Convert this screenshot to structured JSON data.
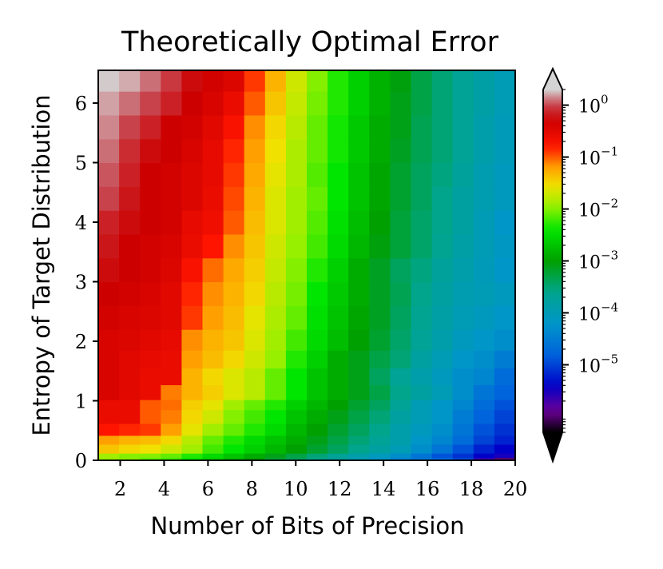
{
  "chart_data": {
    "type": "heatmap",
    "title": "Theoretically Optimal Error",
    "xlabel": "Number of Bits of Precision",
    "ylabel": "Entropy of Target Distribution",
    "xlim": [
      1,
      20
    ],
    "ylim": [
      0,
      6.55
    ],
    "x_ticks": [
      2,
      4,
      6,
      8,
      10,
      12,
      14,
      16,
      18,
      20
    ],
    "x_tick_labels": [
      "2",
      "4",
      "6",
      "8",
      "10",
      "12",
      "14",
      "16",
      "18",
      "20"
    ],
    "y_ticks": [
      0,
      1,
      2,
      3,
      4,
      5,
      6
    ],
    "y_tick_labels": [
      "0",
      "1",
      "2",
      "3",
      "4",
      "5",
      "6"
    ],
    "columns_bits": [
      1,
      2,
      3,
      4,
      5,
      6,
      7,
      8,
      9,
      10,
      11,
      12,
      13,
      14,
      15,
      16,
      17,
      18,
      19,
      20
    ],
    "colorbar": {
      "scale": "log",
      "colormap": "nipy_spectral",
      "extend": "both",
      "range": [
        5e-07,
        2
      ],
      "tick_exponents": [
        0,
        -1,
        -2,
        -3,
        -4,
        -5
      ],
      "tick_base": "10",
      "colors": [
        "#000000",
        "#7700a0",
        "#0000dd",
        "#0099dd",
        "#00aa88",
        "#00aa00",
        "#00ff00",
        "#ccf000",
        "#ffcc00",
        "#ff0000",
        "#cc0000",
        "#cccccc"
      ]
    },
    "log10_error_grid": {
      "description": "rows bottom-to-top by entropy band, columns = bits 1..20",
      "row_entropy_bounds": [
        0,
        0.05,
        0.12,
        0.27,
        0.42,
        0.62,
        0.85,
        1.02,
        1.27,
        1.55,
        1.85,
        2.2,
        2.6,
        3.0,
        3.4,
        3.8,
        4.2,
        4.6,
        5.0,
        5.4,
        5.8,
        6.2,
        6.55
      ],
      "rows": [
        [
          -1.95,
          -2.0,
          -2.1,
          -2.2,
          -2.4,
          -2.6,
          -2.8,
          -3.0,
          -3.2,
          -3.4,
          -3.6,
          -3.8,
          -4.0,
          -4.2,
          -4.4,
          -4.6,
          -4.8,
          -5.0,
          -5.6,
          -6.0
        ],
        [
          -1.9,
          -2.0,
          -2.0,
          -2.1,
          -2.3,
          -2.5,
          -2.7,
          -2.9,
          -3.1,
          -3.3,
          -3.5,
          -3.7,
          -3.9,
          -4.1,
          -4.3,
          -4.6,
          -4.9,
          -5.1,
          -5.4,
          -5.5
        ],
        [
          -1.4,
          -1.5,
          -1.55,
          -1.7,
          -1.9,
          -2.2,
          -2.4,
          -2.6,
          -2.8,
          -3.0,
          -3.2,
          -3.4,
          -3.6,
          -3.8,
          -4.0,
          -4.3,
          -4.6,
          -4.9,
          -5.2,
          -5.4
        ],
        [
          -1.2,
          -1.3,
          -1.35,
          -1.5,
          -1.8,
          -2.1,
          -2.3,
          -2.5,
          -2.7,
          -2.9,
          -3.1,
          -3.3,
          -3.5,
          -3.7,
          -3.9,
          -4.2,
          -4.4,
          -4.7,
          -5.0,
          -5.2
        ],
        [
          -0.8,
          -0.85,
          -0.9,
          -1.2,
          -1.6,
          -1.9,
          -2.1,
          -2.3,
          -2.5,
          -2.8,
          -3.0,
          -3.2,
          -3.4,
          -3.6,
          -3.9,
          -4.1,
          -4.3,
          -4.6,
          -4.9,
          -5.1
        ],
        [
          -0.6,
          -0.6,
          -1.0,
          -1.1,
          -1.5,
          -1.7,
          -2.0,
          -2.2,
          -2.4,
          -2.7,
          -2.9,
          -3.1,
          -3.3,
          -3.5,
          -3.8,
          -4.0,
          -4.2,
          -4.5,
          -4.8,
          -5.0
        ],
        [
          -0.6,
          -0.6,
          -1.0,
          -1.05,
          -1.45,
          -1.6,
          -1.9,
          -2.1,
          -2.3,
          -2.6,
          -2.8,
          -3.0,
          -3.2,
          -3.4,
          -3.7,
          -4.0,
          -4.2,
          -4.4,
          -4.7,
          -4.9
        ],
        [
          -0.4,
          -0.5,
          -0.6,
          -1.1,
          -1.3,
          -1.45,
          -1.65,
          -1.8,
          -2.1,
          -2.4,
          -2.7,
          -2.9,
          -3.1,
          -3.3,
          -3.6,
          -3.8,
          -4.0,
          -4.3,
          -4.6,
          -4.8
        ],
        [
          -0.4,
          -0.5,
          -0.6,
          -0.6,
          -1.3,
          -1.5,
          -1.65,
          -1.8,
          -2.1,
          -2.4,
          -2.7,
          -2.9,
          -3.1,
          -3.4,
          -3.7,
          -3.9,
          -4.1,
          -4.3,
          -4.4,
          -4.7
        ],
        [
          -0.4,
          -0.5,
          -0.55,
          -0.6,
          -1.2,
          -1.35,
          -1.5,
          -1.7,
          -1.95,
          -2.3,
          -2.6,
          -2.9,
          -3.1,
          -3.3,
          -3.5,
          -3.8,
          -4.0,
          -4.2,
          -4.3,
          -4.5
        ],
        [
          -0.4,
          -0.45,
          -0.5,
          -0.55,
          -1.15,
          -1.3,
          -1.4,
          -1.65,
          -1.9,
          -2.2,
          -2.5,
          -2.75,
          -3.0,
          -3.2,
          -3.45,
          -3.7,
          -3.9,
          -4.1,
          -4.2,
          -4.3
        ],
        [
          -0.35,
          -0.4,
          -0.45,
          -0.5,
          -0.9,
          -1.2,
          -1.35,
          -1.6,
          -1.85,
          -2.1,
          -2.45,
          -2.7,
          -2.95,
          -3.15,
          -3.4,
          -3.65,
          -3.85,
          -4.0,
          -4.1,
          -4.2
        ],
        [
          -0.3,
          -0.35,
          -0.4,
          -0.5,
          -0.85,
          -1.15,
          -1.3,
          -1.5,
          -1.8,
          -2.05,
          -2.4,
          -2.65,
          -2.9,
          -3.15,
          -3.35,
          -3.6,
          -3.8,
          -3.95,
          -4.0,
          -4.1
        ],
        [
          -0.25,
          -0.3,
          -0.35,
          -0.45,
          -0.75,
          -1.05,
          -1.25,
          -1.45,
          -1.75,
          -2.0,
          -2.3,
          -2.6,
          -2.9,
          -3.15,
          -3.4,
          -3.55,
          -3.75,
          -3.9,
          -4.05,
          -4.2
        ],
        [
          -0.2,
          -0.3,
          -0.35,
          -0.4,
          -0.6,
          -0.8,
          -1.15,
          -1.4,
          -1.7,
          -1.95,
          -2.2,
          -2.5,
          -2.8,
          -3.05,
          -3.25,
          -3.45,
          -3.65,
          -3.85,
          -4.0,
          -4.15
        ],
        [
          -0.15,
          -0.25,
          -0.3,
          -0.35,
          -0.55,
          -0.65,
          -1.0,
          -1.35,
          -1.65,
          -1.9,
          -2.15,
          -2.45,
          -2.75,
          -3.0,
          -3.25,
          -3.45,
          -3.6,
          -3.8,
          -4.0,
          -4.2
        ],
        [
          0.0,
          -0.2,
          -0.3,
          -0.35,
          -0.45,
          -0.6,
          -0.95,
          -1.3,
          -1.65,
          -1.9,
          -2.1,
          -2.4,
          -2.7,
          -2.95,
          -3.2,
          -3.4,
          -3.6,
          -3.8,
          -3.95,
          -4.1
        ],
        [
          0.05,
          -0.15,
          -0.3,
          -0.35,
          -0.45,
          -0.55,
          -0.9,
          -1.25,
          -1.6,
          -1.85,
          -2.15,
          -2.4,
          -2.7,
          -2.95,
          -3.2,
          -3.4,
          -3.55,
          -3.75,
          -3.95,
          -4.1
        ],
        [
          0.1,
          -0.1,
          -0.25,
          -0.3,
          -0.4,
          -0.55,
          -0.85,
          -1.2,
          -1.55,
          -1.85,
          -2.1,
          -2.35,
          -2.65,
          -2.9,
          -3.15,
          -3.35,
          -3.5,
          -3.7,
          -3.9,
          -4.05
        ],
        [
          0.15,
          0.0,
          -0.15,
          -0.3,
          -0.35,
          -0.5,
          -0.75,
          -1.15,
          -1.5,
          -1.8,
          -2.1,
          -2.35,
          -2.65,
          -2.9,
          -3.1,
          -3.35,
          -3.5,
          -3.7,
          -3.9,
          -4.05
        ],
        [
          0.2,
          0.1,
          0.0,
          -0.15,
          -0.3,
          -0.4,
          -0.6,
          -1.0,
          -1.4,
          -1.75,
          -2.05,
          -2.3,
          -2.6,
          -2.85,
          -3.1,
          -3.3,
          -3.5,
          -3.7,
          -3.85,
          -4.0
        ],
        [
          0.28,
          0.22,
          0.1,
          -0.05,
          -0.25,
          -0.35,
          -0.45,
          -0.9,
          -1.3,
          -1.7,
          -2.0,
          -2.3,
          -2.6,
          -2.85,
          -3.05,
          -3.3,
          -3.5,
          -3.7,
          -3.85,
          -4.0
        ]
      ]
    }
  }
}
